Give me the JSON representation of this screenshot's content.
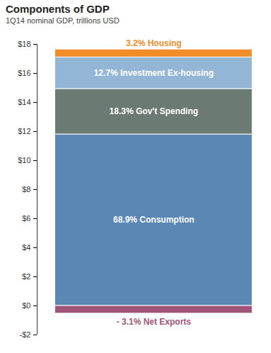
{
  "chart_data": {
    "type": "bar",
    "stacked": true,
    "title": "Components of GDP",
    "subtitle": "1Q14 nominal GDP, trillions USD",
    "categories": [
      null
    ],
    "series": [
      {
        "name": "68.9% Consumption",
        "color": "#5b87b5",
        "values": [
          11.8
        ]
      },
      {
        "name": "18.3% Gov't Spending",
        "color": "#6b7a72",
        "values": [
          3.13
        ]
      },
      {
        "name": "12.7% Investment Ex-housing",
        "color": "#94b6d6",
        "values": [
          2.17
        ]
      },
      {
        "name": "3.2% Housing",
        "color": "#f08c2a",
        "values": [
          0.55
        ]
      },
      {
        "name": "- 3.1% Net Exports",
        "color": "#a05478",
        "values": [
          -0.53
        ]
      }
    ],
    "ylim": [
      -2,
      18
    ],
    "yticks": [
      {
        "value": -2,
        "label": "-$2"
      },
      {
        "value": 0,
        "label": "$0"
      },
      {
        "value": 2,
        "label": "$2"
      },
      {
        "value": 4,
        "label": "$4"
      },
      {
        "value": 6,
        "label": "$6"
      },
      {
        "value": 8,
        "label": "$8"
      },
      {
        "value": 10,
        "label": "$10"
      },
      {
        "value": 12,
        "label": "$12"
      },
      {
        "value": 14,
        "label": "$14"
      },
      {
        "value": 16,
        "label": "$16"
      },
      {
        "value": 18,
        "label": "$18"
      }
    ],
    "tick_labels": "y",
    "grid": false
  }
}
